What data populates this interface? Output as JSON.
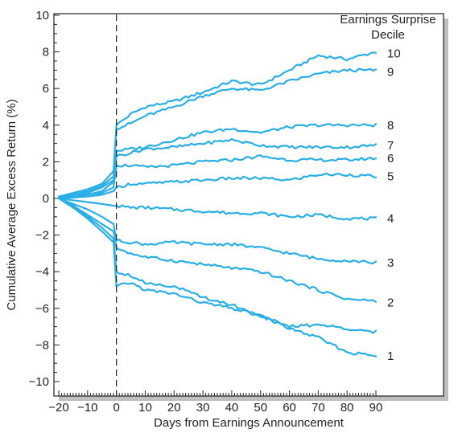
{
  "chart_data": {
    "type": "line",
    "xlabel": "Days from Earnings Announcement",
    "ylabel": "Cumulative Average Excess Return (%)",
    "xlim": [
      -20,
      90
    ],
    "ylim": [
      -10,
      10
    ],
    "x_ticks": [
      -20,
      -10,
      0,
      10,
      20,
      30,
      40,
      50,
      60,
      70,
      80,
      90
    ],
    "x_tick_labels": [
      "−20",
      "−10",
      "0",
      "10",
      "20",
      "30",
      "40",
      "50",
      "60",
      "70",
      "80",
      "90"
    ],
    "y_ticks": [
      -10,
      -8,
      -6,
      -4,
      -2,
      0,
      2,
      4,
      6,
      8,
      10
    ],
    "y_tick_labels": [
      "−10",
      "−8",
      "−6",
      "−4",
      "−2",
      "0",
      "2",
      "4",
      "6",
      "8",
      "10"
    ],
    "event_x": 0,
    "grid": false,
    "legend_title": [
      "Earnings Surprise",
      "Decile"
    ],
    "line_color": "#29aee6",
    "x": [
      -20,
      -15,
      -10,
      -5,
      -1,
      0,
      5,
      10,
      20,
      30,
      40,
      50,
      60,
      70,
      80,
      90
    ],
    "series": [
      {
        "name": "10",
        "values": [
          0.1,
          0.3,
          0.5,
          0.8,
          1.5,
          4.0,
          4.6,
          5.0,
          5.3,
          5.8,
          6.4,
          6.2,
          7.0,
          7.8,
          7.6,
          8.0
        ]
      },
      {
        "name": "9",
        "values": [
          0.1,
          0.2,
          0.4,
          0.7,
          1.2,
          3.8,
          4.1,
          4.5,
          5.0,
          5.6,
          6.0,
          5.9,
          6.4,
          6.8,
          7.0,
          7.0
        ]
      },
      {
        "name": "8",
        "values": [
          0.1,
          0.2,
          0.3,
          0.6,
          1.0,
          2.6,
          2.7,
          2.8,
          3.2,
          3.6,
          3.8,
          3.6,
          3.9,
          4.0,
          4.0,
          4.0
        ]
      },
      {
        "name": "7",
        "values": [
          0.05,
          0.1,
          0.2,
          0.4,
          0.9,
          2.3,
          2.5,
          2.7,
          2.8,
          3.0,
          3.2,
          2.9,
          2.8,
          2.8,
          2.8,
          2.9
        ]
      },
      {
        "name": "6",
        "values": [
          0.05,
          0.1,
          0.2,
          0.3,
          0.6,
          1.8,
          1.8,
          1.7,
          1.8,
          2.0,
          2.1,
          2.3,
          2.1,
          2.1,
          2.1,
          2.2
        ]
      },
      {
        "name": "5",
        "values": [
          0.0,
          0.05,
          0.1,
          0.2,
          0.4,
          0.6,
          0.8,
          0.8,
          0.9,
          1.0,
          1.1,
          1.1,
          1.0,
          1.3,
          1.3,
          1.2
        ]
      },
      {
        "name": "4",
        "values": [
          0.0,
          -0.1,
          -0.2,
          -0.3,
          -0.4,
          -0.4,
          -0.5,
          -0.5,
          -0.6,
          -0.7,
          -0.8,
          -0.8,
          -1.0,
          -0.9,
          -1.1,
          -1.1
        ]
      },
      {
        "name": "3",
        "values": [
          0.0,
          -0.3,
          -0.6,
          -1.0,
          -1.4,
          -2.3,
          -2.4,
          -2.5,
          -2.4,
          -2.5,
          -2.5,
          -2.7,
          -3.0,
          -3.3,
          -3.4,
          -3.5
        ]
      },
      {
        "name": "2",
        "values": [
          0.0,
          -0.4,
          -0.9,
          -1.4,
          -1.8,
          -2.7,
          -3.0,
          -3.2,
          -3.4,
          -3.6,
          -3.8,
          -4.0,
          -4.5,
          -5.0,
          -5.5,
          -5.6
        ]
      },
      {
        "name": "1",
        "values": [
          0.0,
          -0.5,
          -1.1,
          -1.8,
          -2.4,
          -4.8,
          -4.6,
          -5.0,
          -5.2,
          -5.7,
          -6.0,
          -6.4,
          -7.1,
          -7.6,
          -8.4,
          -8.6
        ]
      }
    ],
    "extra_lines": [
      {
        "values": [
          0.0,
          -0.5,
          -1.0,
          -1.6,
          -2.2,
          -4.0,
          -4.2,
          -4.6,
          -4.8,
          -5.4,
          -5.8,
          -6.4,
          -7.0,
          -6.9,
          -7.1,
          -7.3
        ]
      }
    ]
  }
}
